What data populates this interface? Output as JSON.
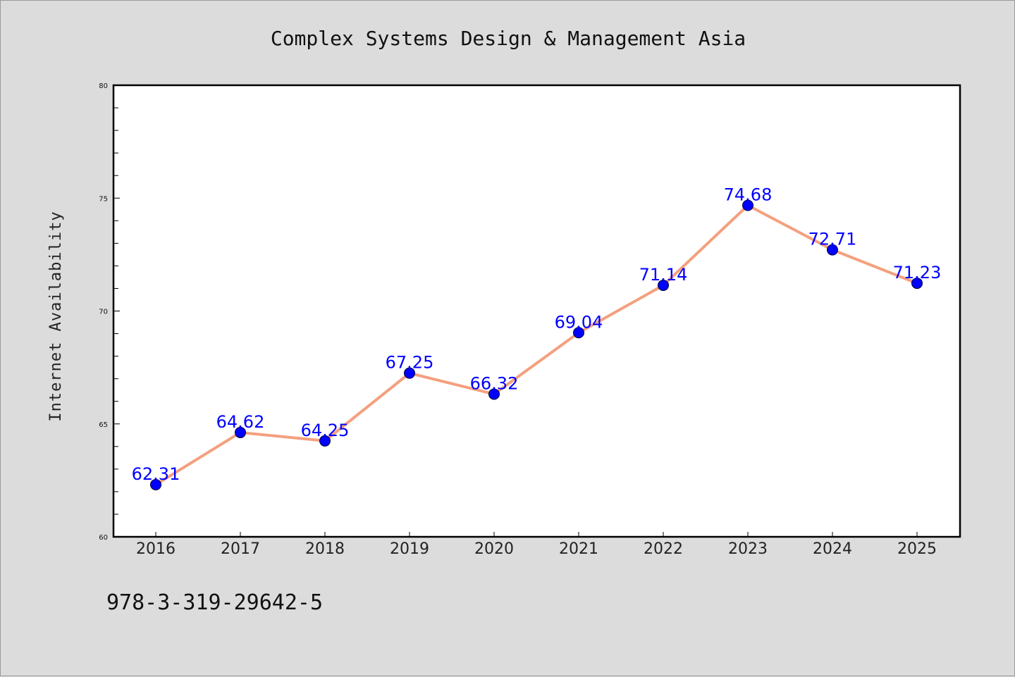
{
  "chart_data": {
    "type": "line",
    "title": "Complex Systems Design & Management Asia",
    "xlabel": "",
    "ylabel": "Internet Availability",
    "categories": [
      "2016",
      "2017",
      "2018",
      "2019",
      "2020",
      "2021",
      "2022",
      "2023",
      "2024",
      "2025"
    ],
    "series": [
      {
        "values": [
          62.31,
          64.62,
          64.25,
          67.25,
          66.32,
          69.04,
          71.14,
          74.68,
          72.71,
          71.23
        ],
        "data_labels": [
          "62.31",
          "64.62",
          "64.25",
          "67.25",
          "66.32",
          "69.04",
          "71.14",
          "74.68",
          "72.71",
          "71.23"
        ],
        "line_color": "#f4a07e",
        "marker_color": "#0000ff"
      }
    ],
    "ylim": [
      60,
      80
    ],
    "yticks": [
      "60",
      "65",
      "70",
      "75",
      "80"
    ],
    "grid": false,
    "legend": "none"
  },
  "footer": {
    "isbn": "978-3-319-29642-5"
  },
  "colors": {
    "background": "#dcdcdc",
    "plot_background": "#ffffff",
    "line": "#f4a07e",
    "marker": "#0000ff",
    "label": "#0000ff"
  }
}
